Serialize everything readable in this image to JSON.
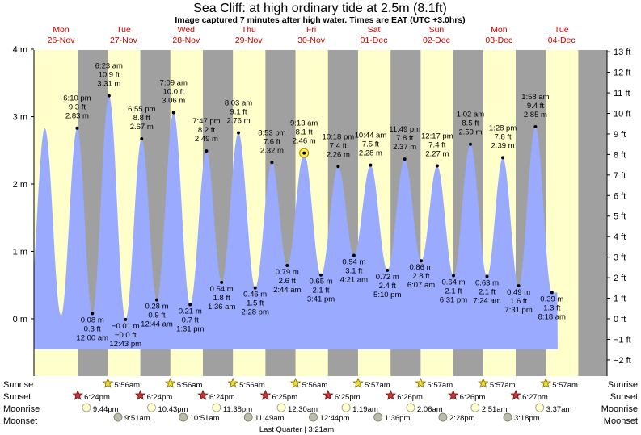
{
  "chart_data": {
    "type": "area",
    "title": "Sea Cliff: at high  ordinary tide at 2.5m (8.1ft)",
    "subtitle": "Image captured 7 minutes after high water. Times are EAT (UTC +3.0hrs)",
    "days": [
      {
        "dow": "Mon",
        "date": "26-Nov"
      },
      {
        "dow": "Tue",
        "date": "27-Nov"
      },
      {
        "dow": "Wed",
        "date": "28-Nov"
      },
      {
        "dow": "Thu",
        "date": "29-Nov"
      },
      {
        "dow": "Fri",
        "date": "30-Nov"
      },
      {
        "dow": "Sat",
        "date": "01-Dec"
      },
      {
        "dow": "Sun",
        "date": "02-Dec"
      },
      {
        "dow": "Mon",
        "date": "03-Dec"
      },
      {
        "dow": "Tue",
        "date": "04-Dec"
      }
    ],
    "left_axis": {
      "unit": "m",
      "ticks": [
        "4 m",
        "3 m",
        "2 m",
        "1 m",
        "0 m"
      ],
      "values": [
        4,
        3,
        2,
        1,
        0
      ],
      "range": [
        -0.5,
        4.0
      ]
    },
    "right_axis": {
      "unit": "ft",
      "ticks": [
        "13 ft",
        "12 ft",
        "11 ft",
        "10 ft",
        "9 ft",
        "8 ft",
        "7 ft",
        "6 ft",
        "5 ft",
        "4 ft",
        "3 ft",
        "2 ft",
        "1 ft",
        "0 ft",
        "−1 ft",
        "−2 ft"
      ],
      "values": [
        13,
        12,
        11,
        10,
        9,
        8,
        7,
        6,
        5,
        4,
        3,
        2,
        1,
        0,
        -1,
        -2
      ]
    },
    "tides": [
      {
        "type": "high",
        "hour": 18.17,
        "time": "6:10 pm",
        "ft": "9.3 ft",
        "m": "2.83 m",
        "value": 2.83
      },
      {
        "type": "low",
        "hour": 24.0,
        "time": "12:00 am",
        "ft": "0.3 ft",
        "m": "0.08 m",
        "value": 0.08
      },
      {
        "type": "high",
        "hour": 30.38,
        "time": "6:23 am",
        "ft": "10.9 ft",
        "m": "3.31 m",
        "value": 3.31
      },
      {
        "type": "low",
        "hour": 36.72,
        "time": "12:43 pm",
        "ft": "−0.0 ft",
        "m": "−0.01 m",
        "value": -0.01
      },
      {
        "type": "high",
        "hour": 42.92,
        "time": "6:55 pm",
        "ft": "8.8 ft",
        "m": "2.67 m",
        "value": 2.67
      },
      {
        "type": "low",
        "hour": 48.73,
        "time": "12:44 am",
        "ft": "0.9 ft",
        "m": "0.28 m",
        "value": 0.28
      },
      {
        "type": "high",
        "hour": 55.15,
        "time": "7:09 am",
        "ft": "10.0 ft",
        "m": "3.06 m",
        "value": 3.06
      },
      {
        "type": "low",
        "hour": 61.52,
        "time": "1:31 pm",
        "ft": "0.7 ft",
        "m": "0.21 m",
        "value": 0.21
      },
      {
        "type": "high",
        "hour": 67.78,
        "time": "7:47 pm",
        "ft": "8.2 ft",
        "m": "2.49 m",
        "value": 2.49
      },
      {
        "type": "low",
        "hour": 73.6,
        "time": "1:36 am",
        "ft": "1.8 ft",
        "m": "0.54 m",
        "value": 0.54
      },
      {
        "type": "high",
        "hour": 80.05,
        "time": "8:03 am",
        "ft": "9.1 ft",
        "m": "2.76 m",
        "value": 2.76
      },
      {
        "type": "low",
        "hour": 86.47,
        "time": "2:28 pm",
        "ft": "1.5 ft",
        "m": "0.46 m",
        "value": 0.46
      },
      {
        "type": "high",
        "hour": 92.88,
        "time": "8:53 pm",
        "ft": "7.6 ft",
        "m": "2.32 m",
        "value": 2.32
      },
      {
        "type": "low",
        "hour": 98.73,
        "time": "2:44 am",
        "ft": "2.6 ft",
        "m": "0.79 m",
        "value": 0.79
      },
      {
        "type": "high",
        "hour": 105.22,
        "time": "9:13 am",
        "ft": "8.1 ft",
        "m": "2.46 m",
        "value": 2.46
      },
      {
        "type": "low",
        "hour": 111.68,
        "time": "3:41 pm",
        "ft": "2.1 ft",
        "m": "0.65 m",
        "value": 0.65
      },
      {
        "type": "high",
        "hour": 118.3,
        "time": "10:18 pm",
        "ft": "7.4 ft",
        "m": "2.26 m",
        "value": 2.26
      },
      {
        "type": "low",
        "hour": 124.35,
        "time": "4:21 am",
        "ft": "3.1 ft",
        "m": "0.94 m",
        "value": 0.94
      },
      {
        "type": "high",
        "hour": 130.73,
        "time": "10:44 am",
        "ft": "7.5 ft",
        "m": "2.28 m",
        "value": 2.28
      },
      {
        "type": "low",
        "hour": 137.17,
        "time": "5:10 pm",
        "ft": "2.4 ft",
        "m": "0.72 m",
        "value": 0.72
      },
      {
        "type": "high",
        "hour": 143.82,
        "time": "11:49 pm",
        "ft": "7.8 ft",
        "m": "2.37 m",
        "value": 2.37
      },
      {
        "type": "low",
        "hour": 150.12,
        "time": "6:07 am",
        "ft": "2.8 ft",
        "m": "0.86 m",
        "value": 0.86
      },
      {
        "type": "high",
        "hour": 156.28,
        "time": "12:17 pm",
        "ft": "7.4 ft",
        "m": "2.27 m",
        "value": 2.27
      },
      {
        "type": "low",
        "hour": 162.52,
        "time": "6:31 pm",
        "ft": "2.1 ft",
        "m": "0.64 m",
        "value": 0.64
      },
      {
        "type": "high",
        "hour": 169.03,
        "time": "1:02 am",
        "ft": "8.5 ft",
        "m": "2.59 m",
        "value": 2.59
      },
      {
        "type": "low",
        "hour": 175.4,
        "time": "7:24 am",
        "ft": "2.1 ft",
        "m": "0.63 m",
        "value": 0.63
      },
      {
        "type": "high",
        "hour": 181.47,
        "time": "1:28 pm",
        "ft": "7.8 ft",
        "m": "2.39 m",
        "value": 2.39
      },
      {
        "type": "low",
        "hour": 187.52,
        "time": "7:31 pm",
        "ft": "1.6 ft",
        "m": "0.49 m",
        "value": 0.49
      },
      {
        "type": "high",
        "hour": 193.97,
        "time": "1:58 am",
        "ft": "9.4 ft",
        "m": "2.85 m",
        "value": 2.85
      },
      {
        "type": "low",
        "hour": 200.3,
        "time": "8:18 am",
        "ft": "1.3 ft",
        "m": "0.39 m",
        "value": 0.39
      }
    ],
    "current_tide_index": 14,
    "daylight": {
      "sunrise_hour": 5.93,
      "sunset_hour": 18.4
    },
    "colors": {
      "day": "#ffffcc",
      "night": "#a0a0a0",
      "water": "#99aaff",
      "day_label": "#cc0000"
    }
  },
  "rows": {
    "sunrise_label": "Sunrise",
    "sunset_label": "Sunset",
    "moonrise_label": "Moonrise",
    "moonset_label": "Moonset",
    "sunrise": [
      {
        "hour": 29.93,
        "text": "5:56am"
      },
      {
        "hour": 53.93,
        "text": "5:56am"
      },
      {
        "hour": 77.93,
        "text": "5:56am"
      },
      {
        "hour": 101.93,
        "text": "5:56am"
      },
      {
        "hour": 125.95,
        "text": "5:57am"
      },
      {
        "hour": 149.95,
        "text": "5:57am"
      },
      {
        "hour": 173.95,
        "text": "5:57am"
      },
      {
        "hour": 197.95,
        "text": "5:57am"
      }
    ],
    "sunset": [
      {
        "hour": 18.4,
        "text": "6:24pm"
      },
      {
        "hour": 42.4,
        "text": "6:24pm"
      },
      {
        "hour": 66.4,
        "text": "6:24pm"
      },
      {
        "hour": 90.42,
        "text": "6:25pm"
      },
      {
        "hour": 114.42,
        "text": "6:25pm"
      },
      {
        "hour": 138.43,
        "text": "6:26pm"
      },
      {
        "hour": 162.43,
        "text": "6:26pm"
      },
      {
        "hour": 186.45,
        "text": "6:27pm"
      }
    ],
    "moonrise": [
      {
        "hour": 21.73,
        "text": "9:44pm"
      },
      {
        "hour": 46.72,
        "text": "10:43pm"
      },
      {
        "hour": 71.63,
        "text": "11:38pm"
      },
      {
        "hour": 96.5,
        "text": "12:30am"
      },
      {
        "hour": 121.32,
        "text": "1:19am"
      },
      {
        "hour": 146.1,
        "text": "2:06am"
      },
      {
        "hour": 170.85,
        "text": "2:51am"
      },
      {
        "hour": 195.62,
        "text": "3:37am"
      }
    ],
    "moonset": [
      {
        "hour": 33.85,
        "text": "9:51am"
      },
      {
        "hour": 58.85,
        "text": "10:51am"
      },
      {
        "hour": 83.82,
        "text": "11:49am"
      },
      {
        "hour": 108.73,
        "text": "12:44pm"
      },
      {
        "hour": 133.6,
        "text": "1:36pm"
      },
      {
        "hour": 158.47,
        "text": "2:28pm"
      },
      {
        "hour": 183.3,
        "text": "3:18pm"
      }
    ],
    "moon_phase": "Last Quarter | 3:21am"
  }
}
